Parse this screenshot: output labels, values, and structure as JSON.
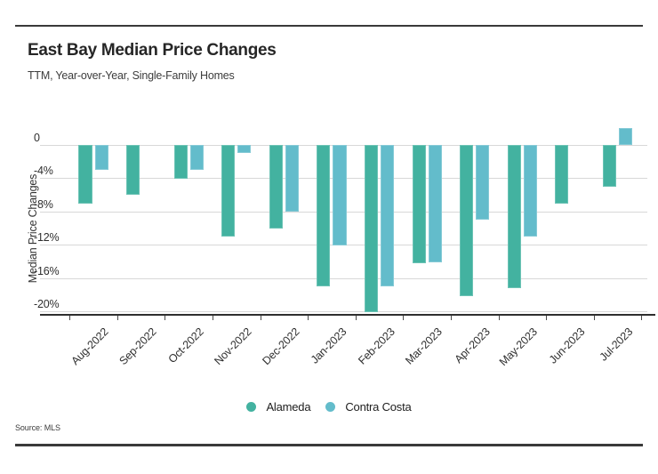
{
  "header": {
    "title": "East Bay Median Price Changes",
    "subtitle": "TTM, Year-over-Year, Single-Family Homes"
  },
  "source": {
    "label": "Source: MLS"
  },
  "chart_data": {
    "type": "bar",
    "title": "East Bay Median Price Changes",
    "subtitle": "TTM, Year-over-Year, Single-Family Homes",
    "ylabel": "Median Price Changes",
    "categories": [
      "Aug-2022",
      "Sep-2022",
      "Oct-2022",
      "Nov-2022",
      "Dec-2022",
      "Jan-2023",
      "Feb-2023",
      "Mar-2023",
      "Apr-2023",
      "May-2023",
      "Jun-2023",
      "Jul-2023"
    ],
    "series": [
      {
        "name": "Alameda",
        "color": "#43B2A0",
        "values": [
          -7,
          -6,
          -4,
          -11,
          -10,
          -17,
          -20,
          -14.2,
          -18.1,
          -17.2,
          -7,
          -5
        ]
      },
      {
        "name": "Contra Costa",
        "color": "#63BCCB",
        "values": [
          -3,
          0,
          -3,
          -1,
          -8,
          -12,
          -17,
          -14.1,
          -9,
          -11,
          0,
          2
        ]
      }
    ],
    "y_ticks": [
      0,
      -4,
      -8,
      -12,
      -16,
      -20
    ],
    "y_tick_labels": [
      "0",
      "-4%",
      "-8%",
      "-12%",
      "-16%",
      "-20%"
    ],
    "ylim": [
      -21,
      2.5
    ],
    "grid": true,
    "legend_position": "bottom",
    "source": "Source: MLS"
  }
}
